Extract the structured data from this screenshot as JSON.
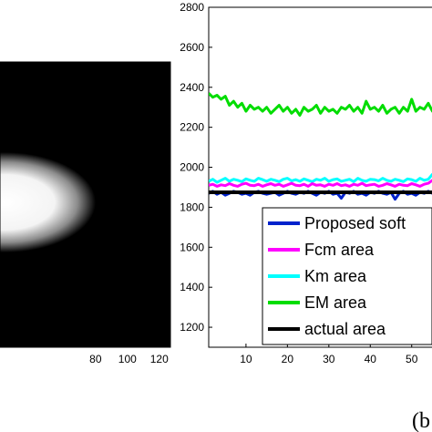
{
  "panel_label": "(b",
  "chart_data": [
    {
      "type": "heatmap",
      "description_visible": "grayscale image of a bright blurred ellipse on black background",
      "x_tick_labels": [
        "80",
        "100",
        "120"
      ],
      "x_ticks": [
        80,
        100,
        120
      ],
      "xlim": [
        20,
        127
      ],
      "colors": {
        "background": "#000000",
        "ellipse": "#ffffff"
      }
    },
    {
      "type": "line",
      "y_tick_labels": [
        "1200",
        "1400",
        "1600",
        "1800",
        "2000",
        "2200",
        "2400",
        "2600",
        "2800"
      ],
      "y_ticks": [
        1200,
        1400,
        1600,
        1800,
        2000,
        2200,
        2400,
        2600,
        2800
      ],
      "x_tick_labels": [
        "10",
        "20",
        "30",
        "40",
        "50"
      ],
      "x_ticks": [
        10,
        20,
        30,
        40,
        50
      ],
      "ylim": [
        1100,
        2800
      ],
      "xlim": [
        1,
        56
      ],
      "grid": false,
      "legend_position": "bottom-right",
      "series": [
        {
          "name": "Proposed soft",
          "color": "#0022cc",
          "values": [
            1870,
            1880,
            1865,
            1875,
            1860,
            1870,
            1880,
            1875,
            1865,
            1870,
            1860,
            1875,
            1880,
            1870,
            1865,
            1870,
            1875,
            1860,
            1870,
            1880,
            1870,
            1865,
            1875,
            1870,
            1880,
            1870,
            1860,
            1875,
            1870,
            1880,
            1865,
            1870,
            1845,
            1875,
            1870,
            1880,
            1865,
            1870,
            1860,
            1875,
            1870,
            1880,
            1870,
            1865,
            1875,
            1840,
            1870,
            1880,
            1865,
            1870,
            1860,
            1875,
            1870,
            1880,
            1870,
            1865
          ]
        },
        {
          "name": "Fcm area",
          "color": "#ff00ff",
          "values": [
            1910,
            1915,
            1905,
            1912,
            1908,
            1918,
            1910,
            1905,
            1915,
            1920,
            1910,
            1908,
            1915,
            1905,
            1912,
            1918,
            1910,
            1915,
            1905,
            1912,
            1920,
            1910,
            1908,
            1915,
            1905,
            1918,
            1910,
            1912,
            1905,
            1915,
            1910,
            1918,
            1908,
            1912,
            1905,
            1915,
            1910,
            1920,
            1908,
            1912,
            1915,
            1905,
            1910,
            1918,
            1912,
            1905,
            1915,
            1910,
            1908,
            1918,
            1912,
            1905,
            1915,
            1920,
            1935,
            1910
          ]
        },
        {
          "name": "Km area",
          "color": "#00ffff",
          "values": [
            1930,
            1940,
            1925,
            1935,
            1945,
            1930,
            1940,
            1935,
            1928,
            1942,
            1935,
            1930,
            1945,
            1938,
            1930,
            1940,
            1935,
            1928,
            1940,
            1945,
            1932,
            1938,
            1930,
            1942,
            1935,
            1928,
            1940,
            1935,
            1945,
            1930,
            1938,
            1942,
            1930,
            1935,
            1940,
            1928,
            1945,
            1935,
            1930,
            1940,
            1938,
            1932,
            1945,
            1935,
            1930,
            1940,
            1935,
            1928,
            1942,
            1938,
            1930,
            1945,
            1935,
            1940,
            1965,
            1935
          ]
        },
        {
          "name": "EM area",
          "color": "#00dd00",
          "values": [
            2370,
            2350,
            2360,
            2340,
            2355,
            2310,
            2330,
            2300,
            2320,
            2280,
            2310,
            2290,
            2300,
            2280,
            2300,
            2270,
            2290,
            2310,
            2280,
            2300,
            2270,
            2290,
            2260,
            2300,
            2280,
            2290,
            2310,
            2270,
            2300,
            2280,
            2290,
            2270,
            2300,
            2290,
            2310,
            2280,
            2300,
            2270,
            2330,
            2290,
            2300,
            2280,
            2310,
            2270,
            2290,
            2300,
            2270,
            2300,
            2280,
            2340,
            2280,
            2300,
            2290,
            2320,
            2280,
            2300
          ]
        },
        {
          "name": "actual area",
          "color": "#000000",
          "values": [
            1875,
            1875,
            1875,
            1875,
            1875,
            1875,
            1875,
            1875,
            1875,
            1875,
            1875,
            1875,
            1875,
            1875,
            1875,
            1875,
            1875,
            1875,
            1875,
            1875,
            1875,
            1875,
            1875,
            1875,
            1875,
            1875,
            1875,
            1875,
            1875,
            1875,
            1875,
            1875,
            1875,
            1875,
            1875,
            1875,
            1875,
            1875,
            1875,
            1875,
            1875,
            1875,
            1875,
            1875,
            1875,
            1875,
            1875,
            1875,
            1875,
            1875,
            1875,
            1875,
            1875,
            1875,
            1875,
            1875
          ]
        }
      ]
    }
  ]
}
